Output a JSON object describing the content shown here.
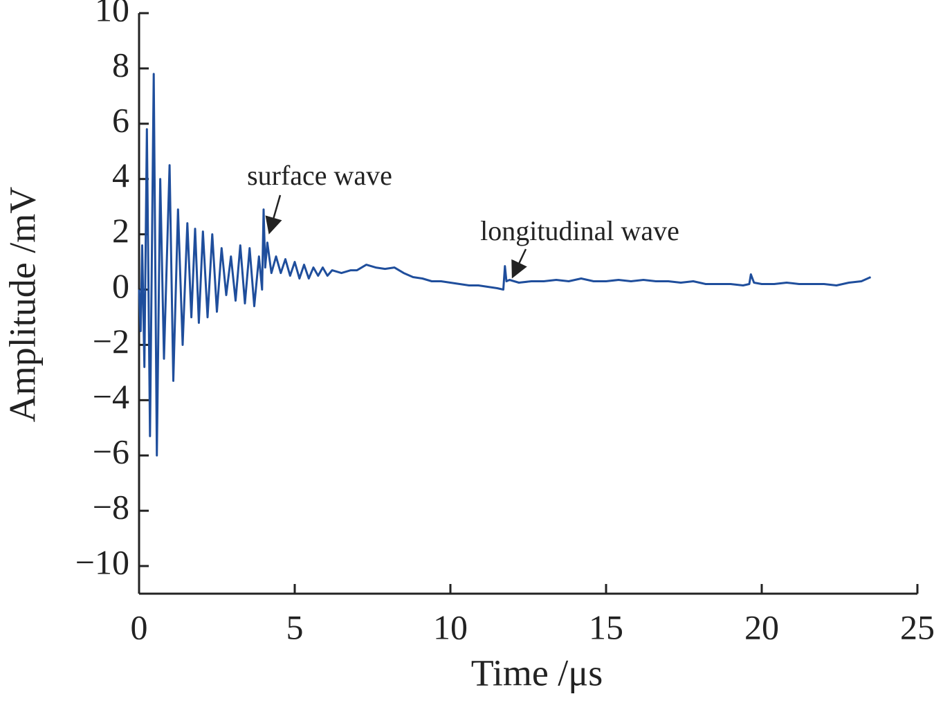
{
  "chart_data": {
    "type": "line",
    "x_label": "Time /μs",
    "y_label": "Amplitude /mV",
    "xlim": [
      0,
      25
    ],
    "ylim": [
      -11,
      10
    ],
    "xticks": [
      0,
      5,
      10,
      15,
      20,
      25
    ],
    "yticks": [
      {
        "value": -10,
        "label": "−10"
      },
      {
        "value": -8,
        "label": "−8"
      },
      {
        "value": -6,
        "label": "−6"
      },
      {
        "value": -4,
        "label": "−4"
      },
      {
        "value": -2,
        "label": "−2"
      },
      0,
      2,
      4,
      6,
      8,
      10
    ],
    "grid": false,
    "annotations": [
      "surface wave",
      "longitudinal wave"
    ],
    "series": [
      {
        "color": "#1f4e9c",
        "x": [
          0,
          0.05,
          0.1,
          0.17,
          0.25,
          0.35,
          0.47,
          0.57,
          0.68,
          0.8,
          0.98,
          1.1,
          1.25,
          1.4,
          1.55,
          1.68,
          1.8,
          1.92,
          2.05,
          2.2,
          2.35,
          2.5,
          2.65,
          2.8,
          2.95,
          3.1,
          3.25,
          3.4,
          3.55,
          3.7,
          3.85,
          3.95,
          4.0,
          4.05,
          4.12,
          4.25,
          4.4,
          4.55,
          4.7,
          4.85,
          5.0,
          5.15,
          5.3,
          5.45,
          5.6,
          5.75,
          5.9,
          6.05,
          6.2,
          6.5,
          6.8,
          7.0,
          7.3,
          7.6,
          7.9,
          8.2,
          8.5,
          8.8,
          9.1,
          9.4,
          9.7,
          10.0,
          10.3,
          10.6,
          10.9,
          11.2,
          11.5,
          11.7,
          11.75,
          11.8,
          11.9,
          12.2,
          12.6,
          13.0,
          13.4,
          13.8,
          14.2,
          14.6,
          15.0,
          15.4,
          15.8,
          16.2,
          16.6,
          17.0,
          17.4,
          17.8,
          18.2,
          18.6,
          19.0,
          19.4,
          19.6,
          19.65,
          19.75,
          20.0,
          20.4,
          20.8,
          21.2,
          21.6,
          22.0,
          22.4,
          22.8,
          23.2,
          23.5
        ],
        "values": [
          0,
          -1.5,
          1.6,
          -2.8,
          5.8,
          -5.3,
          7.8,
          -6.0,
          4.0,
          -2.5,
          4.5,
          -3.3,
          2.9,
          -2.0,
          2.4,
          -1.0,
          2.2,
          -1.2,
          2.1,
          -1.0,
          2.0,
          -0.8,
          1.5,
          -0.2,
          1.2,
          -0.4,
          1.6,
          -0.5,
          1.5,
          -0.6,
          1.2,
          0.0,
          2.9,
          0.8,
          1.7,
          0.6,
          1.2,
          0.6,
          1.1,
          0.5,
          1.0,
          0.4,
          0.9,
          0.4,
          0.8,
          0.5,
          0.8,
          0.5,
          0.7,
          0.6,
          0.7,
          0.7,
          0.9,
          0.8,
          0.75,
          0.8,
          0.6,
          0.45,
          0.4,
          0.3,
          0.3,
          0.25,
          0.2,
          0.15,
          0.15,
          0.1,
          0.05,
          0.0,
          0.85,
          0.3,
          0.35,
          0.25,
          0.3,
          0.3,
          0.35,
          0.3,
          0.4,
          0.3,
          0.3,
          0.35,
          0.3,
          0.35,
          0.3,
          0.3,
          0.25,
          0.3,
          0.2,
          0.2,
          0.2,
          0.15,
          0.2,
          0.55,
          0.25,
          0.2,
          0.2,
          0.25,
          0.2,
          0.2,
          0.2,
          0.15,
          0.25,
          0.3,
          0.45
        ]
      }
    ]
  }
}
